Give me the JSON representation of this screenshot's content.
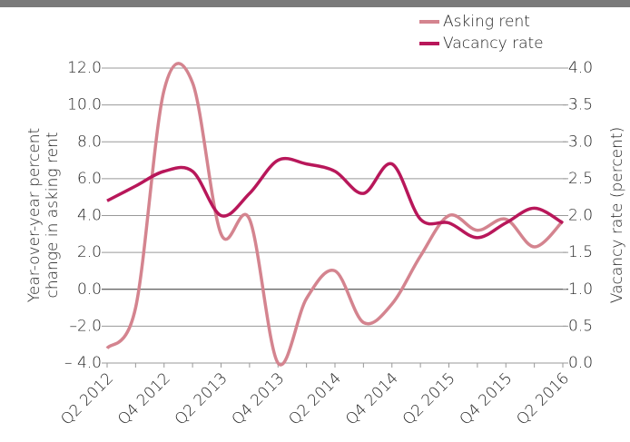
{
  "chart_data": {
    "type": "line",
    "ylabel": [
      "Year-over-year percent",
      "change in asking rent"
    ],
    "y2label": "Vacancy rate (percent)",
    "categories": [
      "Q2 2012",
      null,
      "Q4 2012",
      null,
      "Q2 2013",
      null,
      "Q4 2013",
      null,
      "Q2 2014",
      null,
      "Q4 2014",
      null,
      "Q2 2015",
      null,
      "Q4 2015",
      null,
      "Q2 2016"
    ],
    "series": [
      {
        "name": "Asking rent",
        "color": "#d4848f",
        "values": [
          -3.2,
          -1.0,
          10.8,
          11.2,
          3.0,
          3.8,
          -4.0,
          -0.5,
          1.0,
          -1.8,
          -0.8,
          1.8,
          4.0,
          3.2,
          3.8,
          2.3,
          3.7
        ]
      },
      {
        "name": "Vacancy rate",
        "color": "#b8175a",
        "axis": "y2",
        "values": [
          2.2,
          2.4,
          2.6,
          2.6,
          2.0,
          2.3,
          2.75,
          2.7,
          2.6,
          2.3,
          2.7,
          1.95,
          1.9,
          1.7,
          1.9,
          2.1,
          1.9
        ]
      }
    ],
    "ylim": [
      -4,
      12
    ],
    "yticks": [
      {
        "value": -4,
        "label": "– 4.0"
      },
      {
        "value": -2,
        "label": "–2.0"
      },
      {
        "value": 0,
        "label": "0.0"
      },
      {
        "value": 2,
        "label": "2.0"
      },
      {
        "value": 4,
        "label": "4.0"
      },
      {
        "value": 6,
        "label": "6.0"
      },
      {
        "value": 8,
        "label": "8.0"
      },
      {
        "value": 10,
        "label": "10.0"
      },
      {
        "value": 12,
        "label": "12.0"
      }
    ],
    "y2lim": [
      0,
      4
    ],
    "y2ticks": [
      {
        "value": 0,
        "label": "0.0"
      },
      {
        "value": 0.5,
        "label": "0.5"
      },
      {
        "value": 1,
        "label": "1.0"
      },
      {
        "value": 1.5,
        "label": "1.5"
      },
      {
        "value": 2,
        "label": "2.0"
      },
      {
        "value": 2.5,
        "label": "2.5"
      },
      {
        "value": 3,
        "label": "3.0"
      },
      {
        "value": 3.5,
        "label": "3.5"
      },
      {
        "value": 4,
        "label": "4.0"
      }
    ],
    "grid": true,
    "legend": "top-right"
  }
}
